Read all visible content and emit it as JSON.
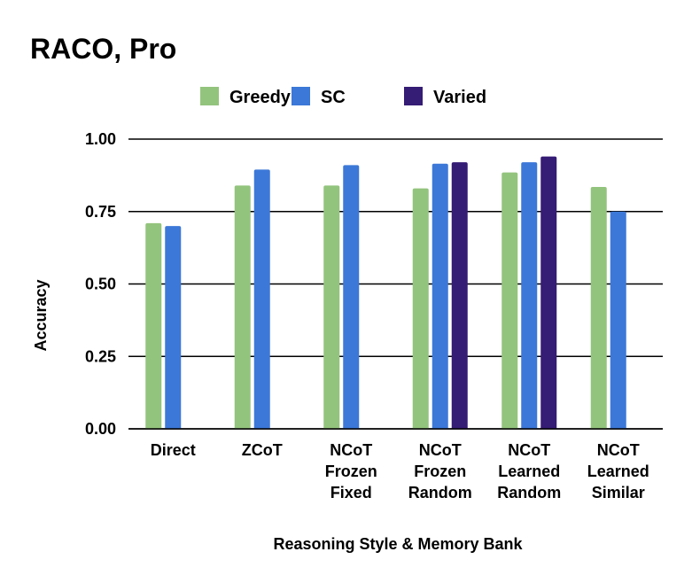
{
  "chart_data": {
    "type": "bar",
    "title": "RACO, Pro",
    "xlabel": "Reasoning Style & Memory Bank",
    "ylabel": "Accuracy",
    "ylim": [
      0,
      1
    ],
    "yticks": [
      "0.00",
      "0.25",
      "0.50",
      "0.75",
      "1.00"
    ],
    "grid": true,
    "legend_position": "top",
    "categories": [
      [
        "Direct"
      ],
      [
        "ZCoT"
      ],
      [
        "NCoT",
        "Frozen",
        "Fixed"
      ],
      [
        "NCoT",
        "Frozen",
        "Random"
      ],
      [
        "NCoT",
        "Learned",
        "Random"
      ],
      [
        "NCoT",
        "Learned",
        "Similar"
      ]
    ],
    "series": [
      {
        "name": "Greedy",
        "color": "#93c47d",
        "values": [
          0.71,
          0.84,
          0.84,
          0.83,
          0.885,
          0.835
        ]
      },
      {
        "name": "SC",
        "color": "#3c78d8",
        "values": [
          0.7,
          0.895,
          0.91,
          0.915,
          0.92,
          0.75
        ]
      },
      {
        "name": "Varied",
        "color": "#351c75",
        "values": [
          null,
          null,
          null,
          0.92,
          0.94,
          null
        ]
      }
    ]
  }
}
